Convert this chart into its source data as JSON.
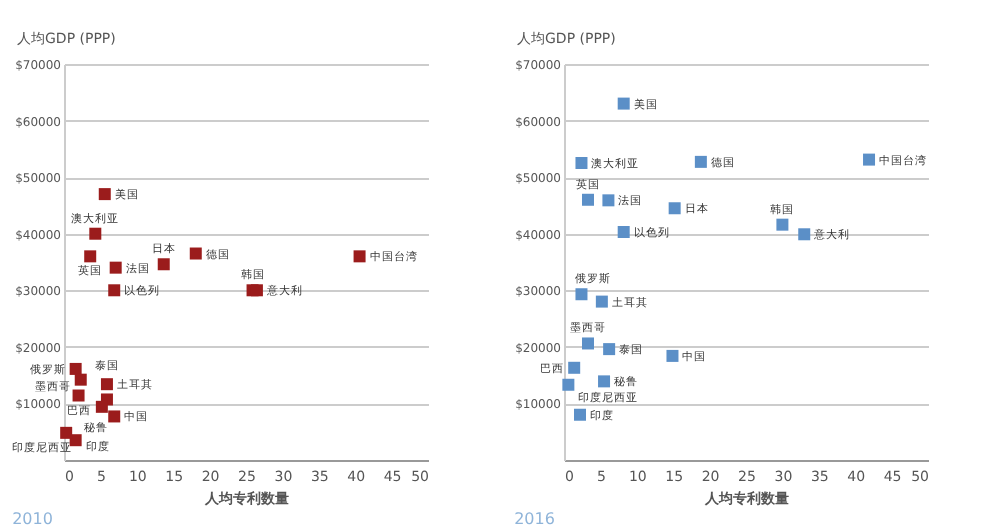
{
  "chart_data": [
    {
      "type": "scatter",
      "title": "2010",
      "xlabel": "人均专利数量",
      "ylabel": "人均GDP (PPP)",
      "marker": "square",
      "grid": "y",
      "xlim": [
        0,
        50
      ],
      "xticks": [
        0,
        5,
        10,
        15,
        20,
        25,
        30,
        35,
        40,
        45,
        50
      ],
      "ylim": [
        0,
        70000
      ],
      "yticks": [
        {
          "value": 10000,
          "label": "$10000"
        },
        {
          "value": 20000,
          "label": "$20000"
        },
        {
          "value": 30000,
          "label": "$30000"
        },
        {
          "value": 40000,
          "label": "$40000"
        },
        {
          "value": 50000,
          "label": "$50000"
        },
        {
          "value": 60000,
          "label": "$60000"
        },
        {
          "value": 70000,
          "label": "$70000"
        }
      ],
      "series": [
        {
          "color": "#9b1c1c",
          "x": [
            5.6,
            4.3,
            3.6,
            7.1,
            13.7,
            18.1,
            40.6,
            6.9,
            25.9,
            26.5,
            1.6,
            2.3,
            5.9,
            2.0,
            5.9,
            5.2,
            6.9,
            1.6,
            0.3
          ],
          "values": [
            47000,
            40000,
            36000,
            34000,
            34600,
            36500,
            36000,
            30000,
            30000,
            30000,
            16100,
            14200,
            13400,
            11400,
            10700,
            9400,
            7700,
            3500,
            4800
          ]
        }
      ],
      "annotations": [
        {
          "text": "美国",
          "x": 5.6,
          "y": 47000
        },
        {
          "text": "澳大利亚",
          "x": 4.3,
          "y": 40000
        },
        {
          "text": "英国",
          "x": 3.6,
          "y": 36000
        },
        {
          "text": "法国",
          "x": 7.1,
          "y": 34000
        },
        {
          "text": "日本",
          "x": 13.7,
          "y": 34600
        },
        {
          "text": "德国",
          "x": 18.1,
          "y": 36500
        },
        {
          "text": "中国台湾",
          "x": 40.6,
          "y": 36000
        },
        {
          "text": "以色列",
          "x": 6.9,
          "y": 30000
        },
        {
          "text": "韩国",
          "x": 25.9,
          "y": 30000
        },
        {
          "text": "意大利",
          "x": 26.5,
          "y": 30000
        },
        {
          "text": "俄罗斯",
          "x": 1.6,
          "y": 16100
        },
        {
          "text": "墨西哥",
          "x": 2.3,
          "y": 14200
        },
        {
          "text": "土耳其",
          "x": 5.9,
          "y": 13400
        },
        {
          "text": "巴西",
          "x": 2.0,
          "y": 11400
        },
        {
          "text": "泰国",
          "x": 5.9,
          "y": 10700
        },
        {
          "text": "秘鲁",
          "x": 5.2,
          "y": 9400
        },
        {
          "text": "中国",
          "x": 6.9,
          "y": 7700
        },
        {
          "text": "印度",
          "x": 1.6,
          "y": 3500
        },
        {
          "text": "印度尼西亚",
          "x": 0.3,
          "y": 4800
        }
      ]
    },
    {
      "type": "scatter",
      "title": "2016",
      "xlabel": "人均专利数量",
      "ylabel": "人均GDP (PPP)",
      "marker": "square",
      "grid": "y",
      "xlim": [
        0,
        50
      ],
      "xticks": [
        0,
        5,
        10,
        15,
        20,
        25,
        30,
        35,
        40,
        45,
        50
      ],
      "ylim": [
        0,
        70000
      ],
      "yticks": [
        {
          "value": 10000,
          "label": "$10000"
        },
        {
          "value": 20000,
          "label": "$20000"
        },
        {
          "value": 30000,
          "label": "$30000"
        },
        {
          "value": 40000,
          "label": "$40000"
        },
        {
          "value": 50000,
          "label": "$50000"
        },
        {
          "value": 60000,
          "label": "$60000"
        },
        {
          "value": 70000,
          "label": "$70000"
        }
      ],
      "series": [
        {
          "color": "#5b8fc7",
          "x": [
            8.2,
            2.4,
            18.8,
            41.9,
            3.3,
            6.1,
            15.2,
            8.2,
            30.0,
            33.0,
            2.4,
            5.2,
            3.3,
            6.2,
            14.9,
            1.4,
            5.5,
            0.6,
            2.2
          ],
          "values": [
            63000,
            52500,
            52700,
            53100,
            46000,
            45900,
            44500,
            40300,
            41600,
            39900,
            29300,
            28000,
            20600,
            19600,
            18400,
            16300,
            13900,
            13300,
            8000
          ]
        }
      ],
      "annotations": [
        {
          "text": "美国",
          "x": 8.2,
          "y": 63000
        },
        {
          "text": "澳大利亚",
          "x": 2.4,
          "y": 52500
        },
        {
          "text": "德国",
          "x": 18.8,
          "y": 52700
        },
        {
          "text": "中国台湾",
          "x": 41.9,
          "y": 53100
        },
        {
          "text": "英国",
          "x": 3.3,
          "y": 46000
        },
        {
          "text": "法国",
          "x": 6.1,
          "y": 45900
        },
        {
          "text": "日本",
          "x": 15.2,
          "y": 44500
        },
        {
          "text": "以色列",
          "x": 8.2,
          "y": 40300
        },
        {
          "text": "韩国",
          "x": 30.0,
          "y": 41600
        },
        {
          "text": "意大利",
          "x": 33.0,
          "y": 39900
        },
        {
          "text": "俄罗斯",
          "x": 2.4,
          "y": 29300
        },
        {
          "text": "土耳其",
          "x": 5.2,
          "y": 28000
        },
        {
          "text": "墨西哥",
          "x": 3.3,
          "y": 20600
        },
        {
          "text": "泰国",
          "x": 6.2,
          "y": 19600
        },
        {
          "text": "中国",
          "x": 14.9,
          "y": 18400
        },
        {
          "text": "巴西",
          "x": 1.4,
          "y": 16300
        },
        {
          "text": "秘鲁",
          "x": 5.5,
          "y": 13900
        },
        {
          "text": "印度尼西亚",
          "x": 0.6,
          "y": 13300
        },
        {
          "text": "印度",
          "x": 2.2,
          "y": 8000
        }
      ]
    }
  ]
}
